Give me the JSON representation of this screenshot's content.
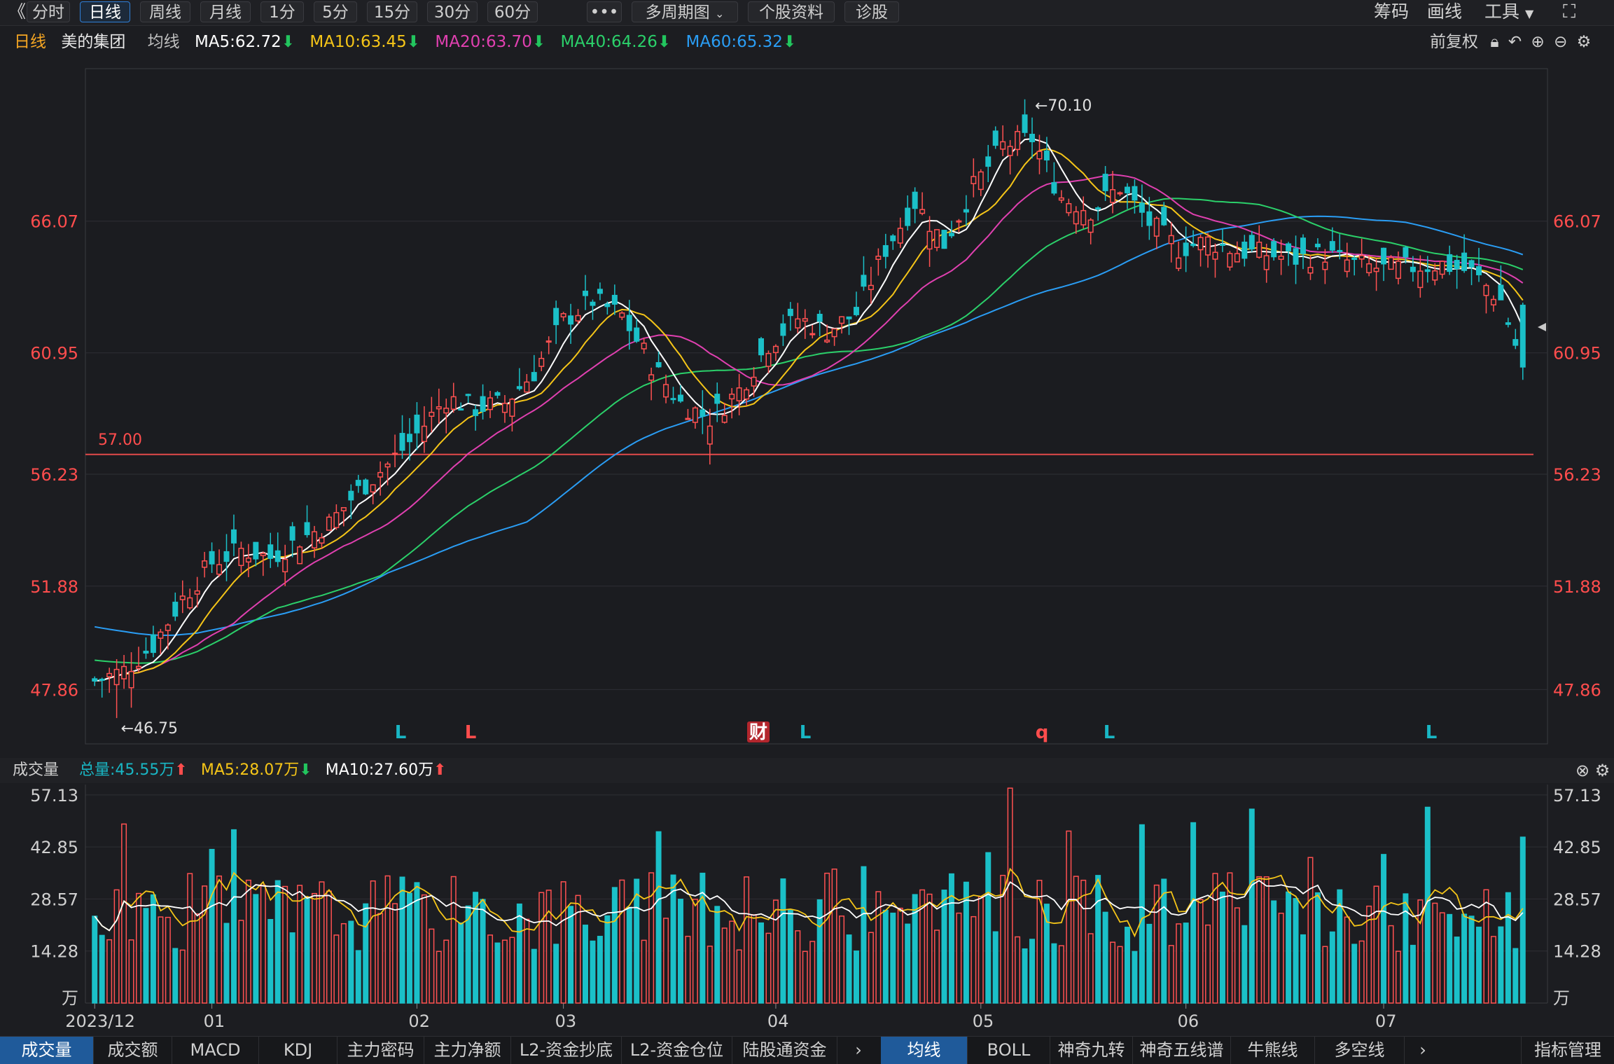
{
  "toolbar": {
    "back_icon": "double-chevron-left-icon",
    "periods": [
      "分时",
      "日线",
      "周线",
      "月线",
      "1分",
      "5分",
      "15分",
      "30分",
      "60分"
    ],
    "active_period": "日线",
    "more_label": "•••",
    "multi_period": "多周期图",
    "stock_info": "个股资料",
    "diagnose": "诊股",
    "right": [
      "筹码",
      "画线",
      "工具"
    ],
    "fullscreen_icon": "fullscreen-icon"
  },
  "header": {
    "period": "日线",
    "stock_name": "美的集团",
    "ma_type": "均线",
    "ma": [
      {
        "label": "MA5:62.72",
        "color": "#ffffff"
      },
      {
        "label": "MA10:63.45",
        "color": "#f5c518"
      },
      {
        "label": "MA20:63.70",
        "color": "#e040b0"
      },
      {
        "label": "MA40:64.26",
        "color": "#2bd06a"
      },
      {
        "label": "MA60:65.32",
        "color": "#2a9df4"
      }
    ],
    "adjust": "前复权"
  },
  "volume_header": {
    "title": "成交量",
    "total": "总量:45.55万",
    "ma5": "MA5:28.07万",
    "ma10": "MA10:27.60万"
  },
  "price_axis": {
    "labels": [
      "66.07",
      "60.95",
      "56.23",
      "51.88",
      "47.86"
    ],
    "values": [
      66.07,
      60.95,
      56.23,
      51.88,
      47.86
    ]
  },
  "volume_axis": {
    "labels": [
      "57.13",
      "42.85",
      "28.57",
      "14.28",
      "万"
    ],
    "values": [
      57.13,
      42.85,
      28.57,
      14.28,
      0
    ]
  },
  "time_axis": [
    "2023/12",
    "01",
    "02",
    "03",
    "04",
    "05",
    "06",
    "07"
  ],
  "annotations": {
    "high": "←70.10",
    "low": "←46.75",
    "level": "57.00",
    "marks": [
      "L",
      "L",
      "财",
      "L",
      "q",
      "L",
      "L"
    ]
  },
  "bottom_tabs_left": [
    "成交量",
    "成交额",
    "MACD",
    "KDJ",
    "主力密码",
    "主力净额",
    "L2-资金抄底",
    "L2-资金仓位",
    "陆股通资金"
  ],
  "bottom_tabs_right": [
    "均线",
    "BOLL",
    "神奇九转",
    "神奇五线谱",
    "牛熊线",
    "多空线"
  ],
  "bottom_manage": "指标管理",
  "chart_data": {
    "type": "candlestick",
    "title": "美的集团 日线",
    "x_months": [
      "2023/12",
      "01",
      "02",
      "03",
      "04",
      "05",
      "06",
      "07"
    ],
    "ylim": [
      45.8,
      72.0
    ],
    "price_ticks": [
      66.07,
      60.95,
      56.23,
      51.88,
      47.86
    ],
    "horizontal_line": 57.0,
    "high": 70.1,
    "low": 46.75,
    "close_points": [
      [
        0,
        48.2
      ],
      [
        4,
        48.6
      ],
      [
        8,
        49.6
      ],
      [
        12,
        51.4
      ],
      [
        16,
        52.8
      ],
      [
        20,
        53.3
      ],
      [
        24,
        53.0
      ],
      [
        28,
        53.7
      ],
      [
        32,
        54.3
      ],
      [
        36,
        55.6
      ],
      [
        40,
        56.6
      ],
      [
        44,
        57.8
      ],
      [
        48,
        59.2
      ],
      [
        52,
        58.8
      ],
      [
        56,
        59.0
      ],
      [
        60,
        60.2
      ],
      [
        64,
        62.2
      ],
      [
        68,
        63.0
      ],
      [
        72,
        62.4
      ],
      [
        76,
        60.5
      ],
      [
        80,
        59.0
      ],
      [
        84,
        58.4
      ],
      [
        88,
        59.5
      ],
      [
        92,
        61.3
      ],
      [
        96,
        62.3
      ],
      [
        100,
        61.8
      ],
      [
        104,
        62.5
      ],
      [
        108,
        65.0
      ],
      [
        112,
        66.8
      ],
      [
        116,
        65.2
      ],
      [
        120,
        67.4
      ],
      [
        124,
        69.0
      ],
      [
        128,
        69.3
      ],
      [
        132,
        67.0
      ],
      [
        136,
        66.5
      ],
      [
        140,
        67.4
      ],
      [
        144,
        66.0
      ],
      [
        148,
        65.0
      ],
      [
        152,
        65.3
      ],
      [
        156,
        64.9
      ],
      [
        160,
        64.8
      ],
      [
        164,
        64.6
      ],
      [
        168,
        64.8
      ],
      [
        172,
        64.4
      ],
      [
        176,
        64.2
      ],
      [
        180,
        64.3
      ],
      [
        184,
        64.4
      ],
      [
        188,
        64.1
      ],
      [
        192,
        63.0
      ],
      [
        195,
        60.4
      ]
    ],
    "series": [
      {
        "name": "MA5",
        "value": 62.72,
        "color": "#ffffff"
      },
      {
        "name": "MA10",
        "value": 63.45,
        "color": "#f5c518"
      },
      {
        "name": "MA20",
        "value": 63.7,
        "color": "#e040b0"
      },
      {
        "name": "MA40",
        "value": 64.26,
        "color": "#2bd06a"
      },
      {
        "name": "MA60",
        "value": 65.32,
        "color": "#2a9df4"
      }
    ],
    "volume": {
      "unit": "万",
      "ylim": [
        0,
        60
      ],
      "total": 45.55,
      "ma5": 28.07,
      "ma10": 27.6
    }
  }
}
